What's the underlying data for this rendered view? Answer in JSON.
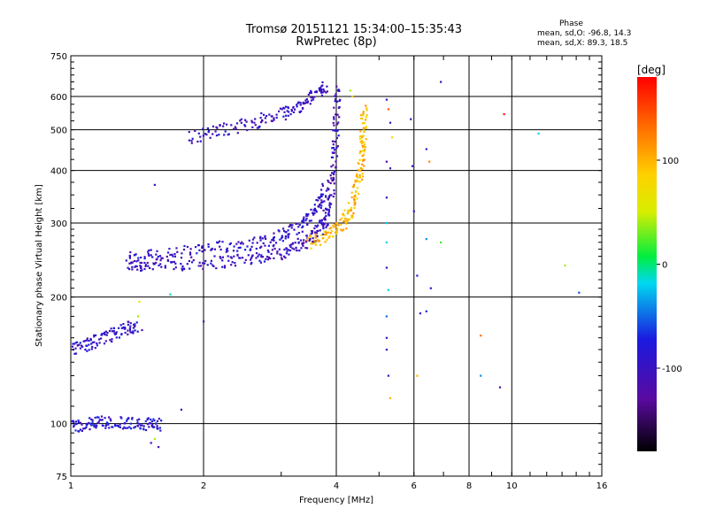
{
  "chart_data": {
    "type": "scatter",
    "title": "Tromsø 20151121 15:34:00–15:35:43",
    "subtitle": "RwPretec (8p)",
    "phase_stats": {
      "heading": "Phase",
      "o_mode": "mean, sd,O:  -96.8, 14.3",
      "x_mode": "mean, sd,X:  89.3, 18.5"
    },
    "xlabel": "Frequency [MHz]",
    "ylabel": "Stationary phase Virtual Height [km]",
    "x_scale": "log",
    "y_scale": "log",
    "xlim": [
      1,
      16
    ],
    "ylim": [
      75,
      750
    ],
    "x_ticks": [
      {
        "v": 1,
        "label": "1"
      },
      {
        "v": 2,
        "label": "2"
      },
      {
        "v": 4,
        "label": "4"
      },
      {
        "v": 6,
        "label": "6"
      },
      {
        "v": 8,
        "label": "8"
      },
      {
        "v": 10,
        "label": "10"
      },
      {
        "v": 16,
        "label": "16"
      }
    ],
    "y_ticks": [
      {
        "v": 75,
        "label": "75"
      },
      {
        "v": 100,
        "label": "100"
      },
      {
        "v": 200,
        "label": "200"
      },
      {
        "v": 300,
        "label": "300"
      },
      {
        "v": 400,
        "label": "400"
      },
      {
        "v": 500,
        "label": "500"
      },
      {
        "v": 600,
        "label": "600"
      },
      {
        "v": 750,
        "label": "750"
      }
    ],
    "grid": true,
    "colorbar": {
      "label": "[deg]",
      "range": [
        -180,
        180
      ],
      "ticks": [
        {
          "v": 100,
          "label": "100"
        },
        {
          "v": 0,
          "label": "0"
        },
        {
          "v": -100,
          "label": "-100"
        }
      ]
    },
    "traces": [
      {
        "mode": "O",
        "phase": -105,
        "points": [
          [
            1.34,
            238
          ],
          [
            1.5,
            238
          ],
          [
            1.8,
            240
          ],
          [
            2.2,
            243
          ],
          [
            2.6,
            248
          ],
          [
            3.0,
            255
          ],
          [
            3.3,
            265
          ],
          [
            3.55,
            280
          ],
          [
            3.75,
            300
          ],
          [
            3.85,
            330
          ],
          [
            3.95,
            400
          ],
          [
            4.0,
            500
          ],
          [
            4.02,
            640
          ]
        ]
      },
      {
        "mode": "O-upper",
        "phase": -95,
        "points": [
          [
            1.34,
            248
          ],
          [
            1.6,
            252
          ],
          [
            2.0,
            260
          ],
          [
            2.4,
            266
          ],
          [
            2.8,
            272
          ],
          [
            3.1,
            284
          ],
          [
            3.4,
            300
          ],
          [
            3.65,
            330
          ],
          [
            3.8,
            370
          ]
        ]
      },
      {
        "mode": "O-high",
        "phase": -100,
        "points": [
          [
            1.85,
            480
          ],
          [
            2.2,
            500
          ],
          [
            2.6,
            520
          ],
          [
            3.0,
            545
          ],
          [
            3.3,
            570
          ],
          [
            3.6,
            610
          ],
          [
            3.8,
            640
          ]
        ]
      },
      {
        "mode": "X",
        "phase": 95,
        "points": [
          [
            3.45,
            268
          ],
          [
            3.8,
            280
          ],
          [
            4.1,
            295
          ],
          [
            4.3,
            320
          ],
          [
            4.45,
            360
          ],
          [
            4.55,
            420
          ],
          [
            4.6,
            480
          ],
          [
            4.62,
            560
          ]
        ]
      },
      {
        "mode": "E",
        "phase": -95,
        "points": [
          [
            1.0,
            150
          ],
          [
            1.1,
            155
          ],
          [
            1.2,
            160
          ],
          [
            1.32,
            168
          ],
          [
            1.42,
            172
          ]
        ]
      },
      {
        "mode": "E-low",
        "phase": -90,
        "points": [
          [
            1.0,
            98
          ],
          [
            1.1,
            100
          ],
          [
            1.2,
            101
          ],
          [
            1.35,
            100
          ],
          [
            1.5,
            100
          ],
          [
            1.6,
            99
          ]
        ]
      }
    ],
    "scattered_points": [
      [
        1.55,
        370,
        -100
      ],
      [
        1.43,
        195,
        60
      ],
      [
        1.42,
        180,
        40
      ],
      [
        1.45,
        167,
        -110
      ],
      [
        1.68,
        203,
        -10
      ],
      [
        2.0,
        175,
        -110
      ],
      [
        1.78,
        108,
        -100
      ],
      [
        1.55,
        92,
        40
      ],
      [
        1.52,
        90,
        -110
      ],
      [
        1.58,
        88,
        -110
      ],
      [
        4.3,
        620,
        40
      ],
      [
        4.35,
        600,
        90
      ],
      [
        5.2,
        590,
        -100
      ],
      [
        5.25,
        560,
        140
      ],
      [
        5.3,
        520,
        -110
      ],
      [
        5.35,
        480,
        80
      ],
      [
        5.2,
        420,
        -120
      ],
      [
        5.3,
        405,
        -110
      ],
      [
        5.2,
        345,
        -100
      ],
      [
        5.2,
        300,
        -20
      ],
      [
        5.2,
        270,
        -20
      ],
      [
        5.2,
        235,
        -100
      ],
      [
        5.25,
        208,
        -20
      ],
      [
        5.2,
        180,
        -50
      ],
      [
        5.2,
        160,
        -100
      ],
      [
        5.2,
        150,
        -110
      ],
      [
        5.25,
        130,
        -100
      ],
      [
        5.3,
        115,
        100
      ],
      [
        5.9,
        530,
        -110
      ],
      [
        5.95,
        410,
        -100
      ],
      [
        6.0,
        320,
        -100
      ],
      [
        6.1,
        225,
        -80
      ],
      [
        6.2,
        183,
        -100
      ],
      [
        6.4,
        450,
        -100
      ],
      [
        6.5,
        420,
        120
      ],
      [
        6.4,
        275,
        -40
      ],
      [
        6.55,
        210,
        -80
      ],
      [
        6.4,
        185,
        -70
      ],
      [
        6.1,
        130,
        100
      ],
      [
        6.9,
        650,
        -110
      ],
      [
        6.9,
        270,
        20
      ],
      [
        8.5,
        162,
        130
      ],
      [
        8.5,
        130,
        -40
      ],
      [
        9.4,
        122,
        -120
      ],
      [
        9.6,
        545,
        170
      ],
      [
        11.5,
        490,
        -20
      ],
      [
        13.2,
        238,
        40
      ],
      [
        14.2,
        205,
        -60
      ]
    ]
  }
}
